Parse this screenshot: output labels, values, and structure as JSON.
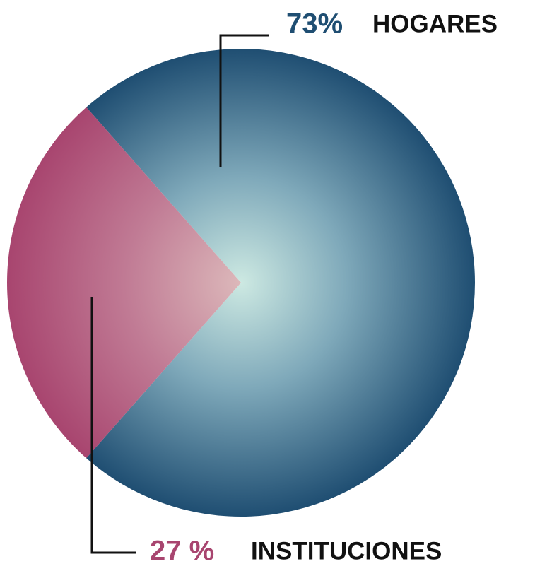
{
  "chart_data": {
    "type": "pie",
    "categories": [
      "HOGARES",
      "INSTITUCIONES"
    ],
    "values": [
      73,
      27
    ],
    "value_labels": [
      "73%",
      "27 %"
    ],
    "colors": [
      "#1f4e72",
      "#a8456f"
    ]
  }
}
